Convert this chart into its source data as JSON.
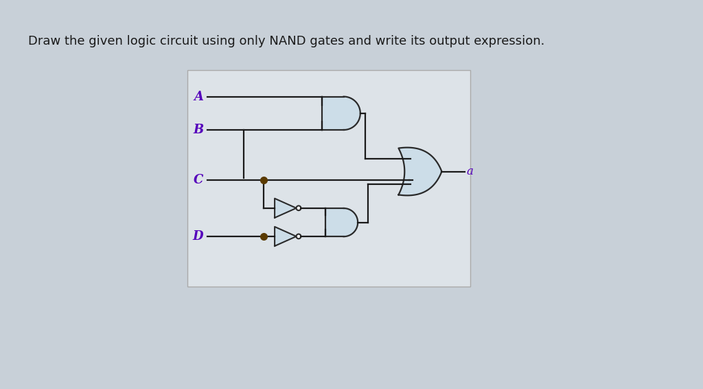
{
  "title": "Draw the given logic circuit using only NAND gates and write its output expression.",
  "title_fontsize": 13,
  "title_color": "#1a1a1a",
  "bg_top_color": "#b8c4cc",
  "bg_bottom_color": "#c8d0d8",
  "panel_color": "#dde2e6",
  "gate_fill": "#ccdde8",
  "gate_edge": "#2a2a2a",
  "wire_color": "#1a1a1a",
  "label_color": "#5500bb",
  "output_label_color": "#5500bb",
  "input_labels": [
    "A",
    "B",
    "C",
    "D"
  ],
  "output_label": "a",
  "lw": 1.6
}
